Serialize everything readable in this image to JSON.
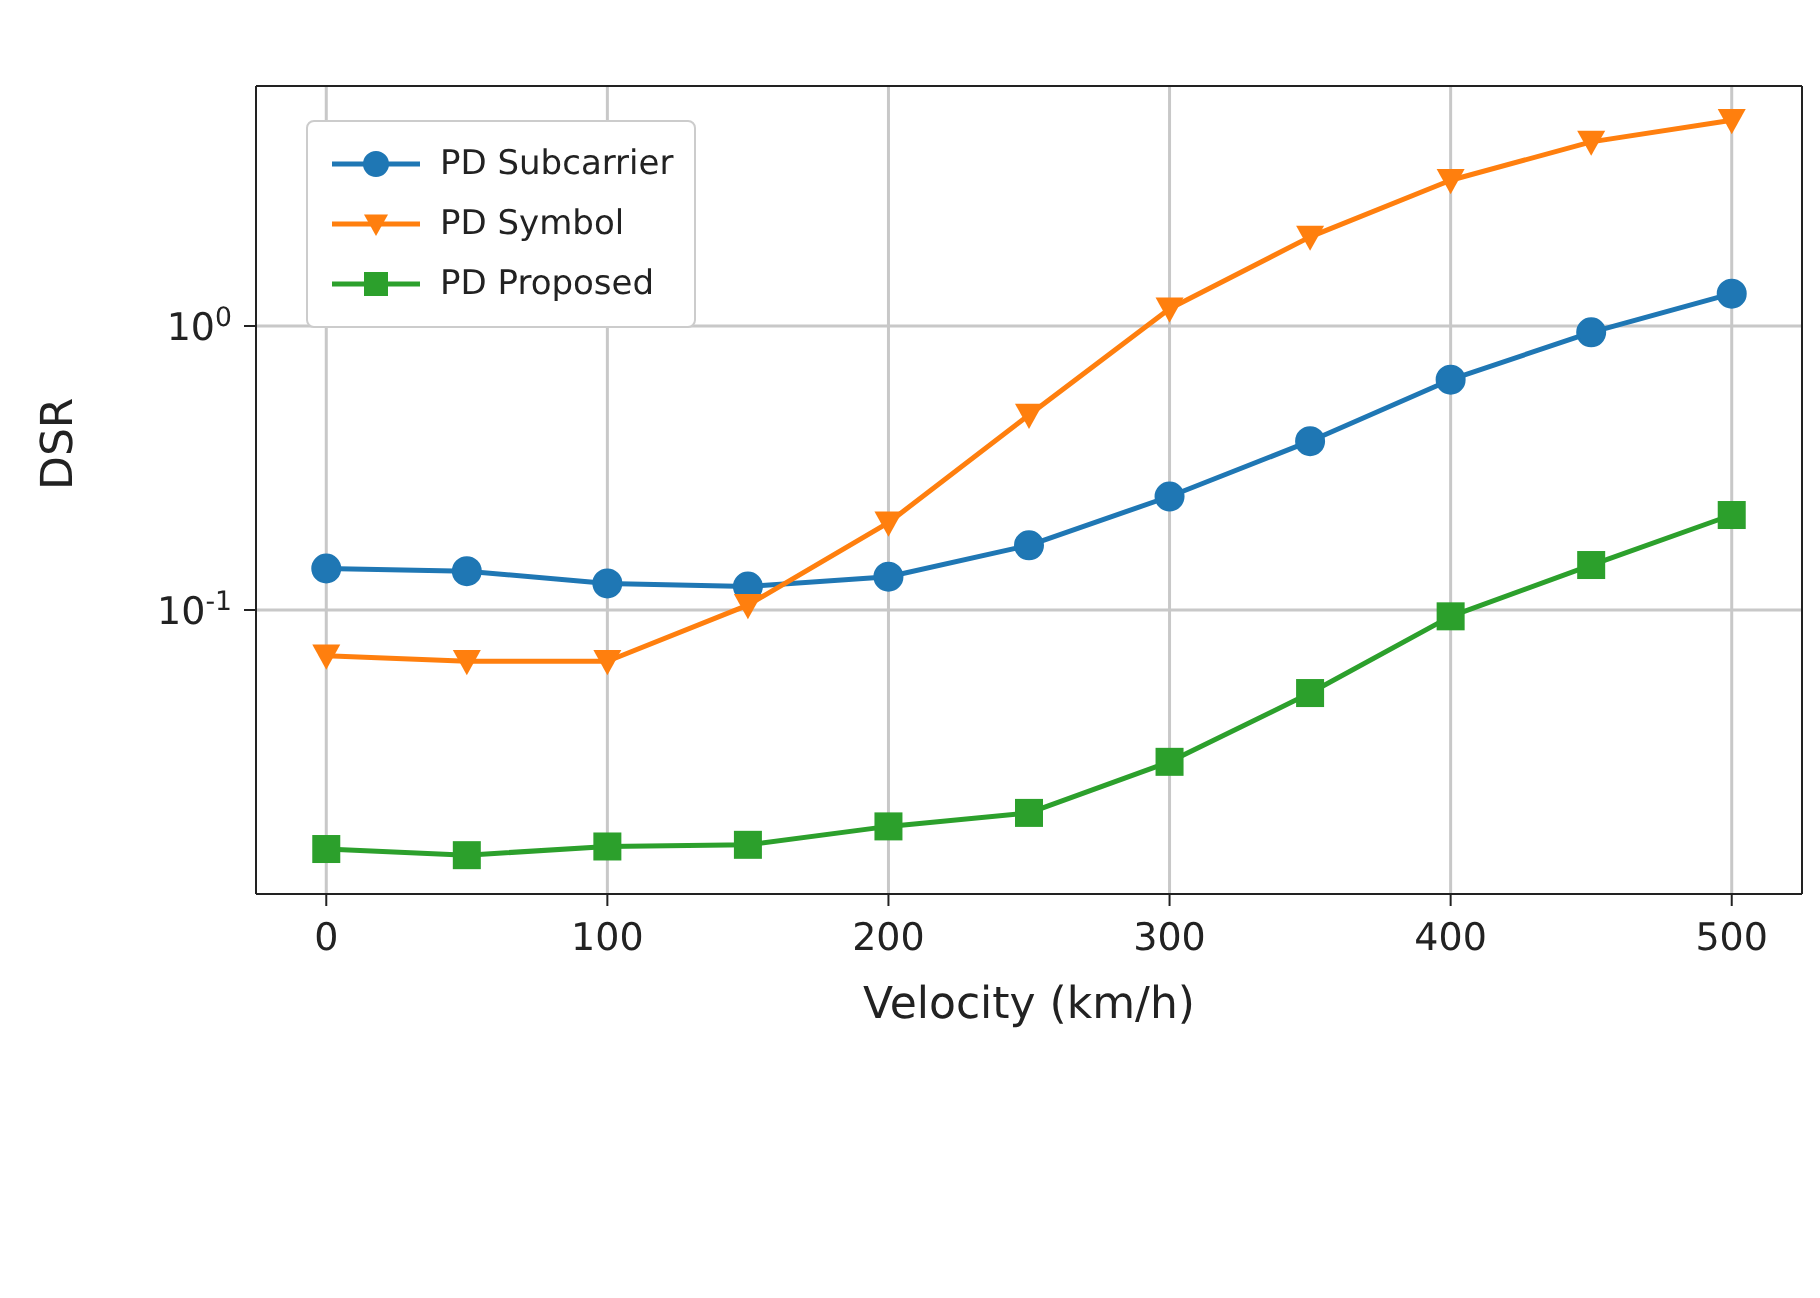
{
  "chart_data": {
    "type": "line",
    "xlabel": "Velocity (km/h)",
    "ylabel": "DSR",
    "x": [
      0,
      50,
      100,
      150,
      200,
      250,
      300,
      350,
      400,
      450,
      500
    ],
    "series": [
      {
        "name": "PD Subcarrier",
        "color": "#1f77b4",
        "marker": "circle",
        "values": [
          0.14,
          0.137,
          0.124,
          0.121,
          0.131,
          0.169,
          0.251,
          0.393,
          0.647,
          0.95,
          1.3
        ]
      },
      {
        "name": "PD Symbol",
        "color": "#ff7f0e",
        "marker": "triangle",
        "values": [
          0.069,
          0.066,
          0.066,
          0.104,
          0.203,
          0.486,
          1.15,
          2.06,
          3.26,
          4.45,
          5.3
        ]
      },
      {
        "name": "PD Proposed",
        "color": "#2ca02c",
        "marker": "square",
        "values": [
          0.0144,
          0.0137,
          0.0147,
          0.0149,
          0.0173,
          0.0193,
          0.0292,
          0.051,
          0.095,
          0.144,
          0.216
        ]
      }
    ],
    "log": "y",
    "xlim": [
      -25,
      525
    ],
    "xticks": [
      0,
      100,
      200,
      300,
      400,
      500
    ],
    "ylim": [
      0.01,
      7
    ],
    "yticks": [
      {
        "value": 0.1,
        "label": "10$^{-1}$"
      },
      {
        "value": 1,
        "label": "10$^{0}$"
      }
    ],
    "grid": true,
    "legend": "top left"
  }
}
